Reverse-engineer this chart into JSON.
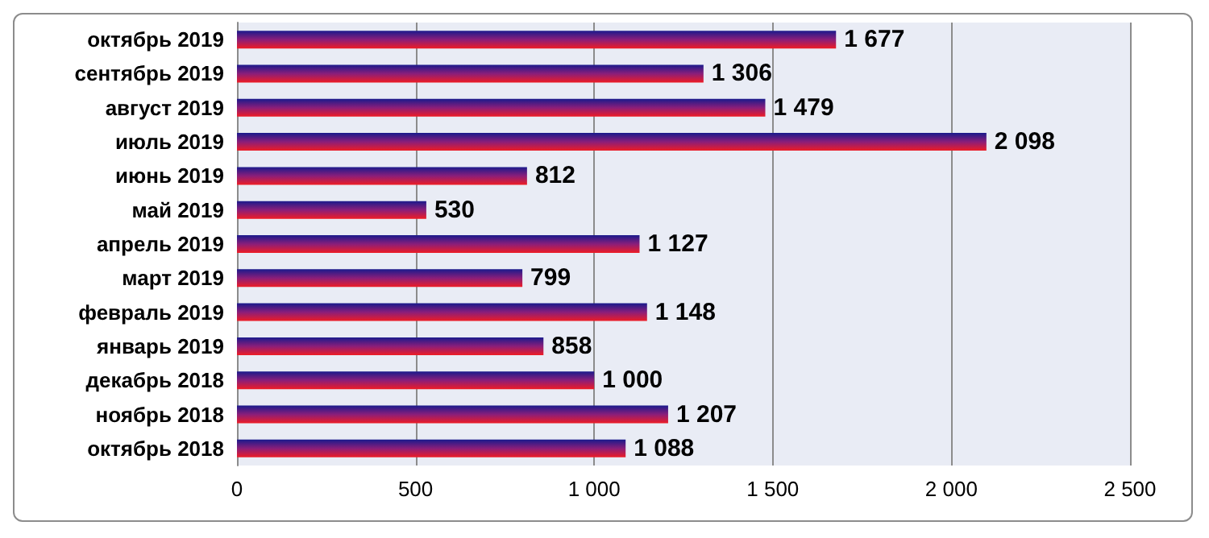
{
  "chart_data": {
    "type": "bar",
    "orientation": "horizontal",
    "categories": [
      "октябрь 2019",
      "сентябрь 2019",
      "август 2019",
      "июль 2019",
      "июнь 2019",
      "май 2019",
      "апрель 2019",
      "март 2019",
      "февраль 2019",
      "январь 2019",
      "декабрь 2018",
      "ноябрь 2018",
      "октябрь 2018"
    ],
    "series": [
      {
        "color": "#ee1c25",
        "values": [
          1677,
          1306,
          1479,
          2098,
          812,
          530,
          1127,
          799,
          1148,
          858,
          1000,
          1207,
          1088
        ],
        "value_labels": [
          "1 677",
          "1 306",
          "1 479",
          "2 098",
          "812",
          "530",
          "1 127",
          "799",
          "1 148",
          "858",
          "1 000",
          "1 207",
          "1 088"
        ]
      }
    ],
    "xlim": [
      0,
      2500
    ],
    "xticks": [
      0,
      500,
      {
        "value": 1000,
        "label": "1 000"
      },
      {
        "value": 1500,
        "label": "1 500"
      },
      {
        "value": 2000,
        "label": "2 000"
      },
      {
        "value": 2500,
        "label": "2 500"
      }
    ],
    "grid": "x"
  }
}
